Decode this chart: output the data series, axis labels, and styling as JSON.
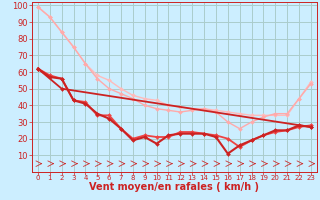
{
  "xlabel": "Vent moyen/en rafales ( km/h )",
  "xlim": [
    -0.5,
    23.5
  ],
  "ylim": [
    0,
    102
  ],
  "yticks": [
    10,
    20,
    30,
    40,
    50,
    60,
    70,
    80,
    90,
    100
  ],
  "xticks": [
    0,
    1,
    2,
    3,
    4,
    5,
    6,
    7,
    8,
    9,
    10,
    11,
    12,
    13,
    14,
    15,
    16,
    17,
    18,
    19,
    20,
    21,
    22,
    23
  ],
  "background_color": "#cceeff",
  "grid_color": "#aacccc",
  "lines": [
    {
      "x": [
        0,
        1,
        2,
        3,
        4,
        5,
        6,
        7,
        8,
        9,
        10,
        11,
        12,
        13,
        14,
        15,
        16,
        17,
        18,
        19,
        20,
        21,
        22,
        23
      ],
      "y": [
        99,
        93,
        84,
        75,
        65,
        58,
        55,
        50,
        46,
        44,
        43,
        40,
        39,
        38,
        38,
        37,
        36,
        35,
        34,
        34,
        34,
        34,
        44,
        54
      ],
      "color": "#ffbbbb",
      "lw": 1.0,
      "marker": "D",
      "ms": 2.0
    },
    {
      "x": [
        0,
        1,
        2,
        3,
        4,
        5,
        6,
        7,
        8,
        9,
        10,
        11,
        12,
        13,
        14,
        15,
        16,
        17,
        18,
        19,
        20,
        21,
        22,
        23
      ],
      "y": [
        99,
        93,
        84,
        75,
        65,
        56,
        50,
        47,
        44,
        40,
        38,
        37,
        36,
        37,
        38,
        36,
        30,
        26,
        30,
        33,
        35,
        35,
        44,
        53
      ],
      "color": "#ffaaaa",
      "lw": 1.0,
      "marker": "D",
      "ms": 2.0
    },
    {
      "x": [
        0,
        1,
        2,
        3,
        4,
        5,
        6,
        7,
        8,
        9,
        10,
        11,
        12,
        13,
        14,
        15,
        16,
        17,
        18,
        19,
        20,
        21,
        22,
        23
      ],
      "y": [
        62,
        58,
        56,
        43,
        42,
        34,
        34,
        26,
        20,
        22,
        21,
        21,
        24,
        24,
        23,
        22,
        20,
        15,
        19,
        22,
        24,
        25,
        27,
        28
      ],
      "color": "#ee4444",
      "lw": 1.3,
      "marker": "D",
      "ms": 2.0
    },
    {
      "x": [
        0,
        1,
        2,
        3,
        4,
        5,
        6,
        7,
        8,
        9,
        10,
        11,
        12,
        13,
        14,
        15,
        16,
        17,
        18,
        19,
        20,
        21,
        22,
        23
      ],
      "y": [
        62,
        57,
        56,
        43,
        41,
        35,
        32,
        26,
        19,
        21,
        17,
        22,
        23,
        23,
        23,
        21,
        11,
        16,
        19,
        22,
        25,
        25,
        28,
        27
      ],
      "color": "#cc2222",
      "lw": 1.5,
      "marker": "D",
      "ms": 2.0
    },
    {
      "x": [
        0,
        2,
        23
      ],
      "y": [
        62,
        50,
        27
      ],
      "color": "#cc2222",
      "lw": 1.3,
      "marker": "D",
      "ms": 2.0
    }
  ],
  "arrow_color": "#cc3333",
  "xlabel_color": "#cc2222",
  "xlabel_fontsize": 7,
  "tick_fontsize": 6,
  "tick_color": "#cc2222"
}
